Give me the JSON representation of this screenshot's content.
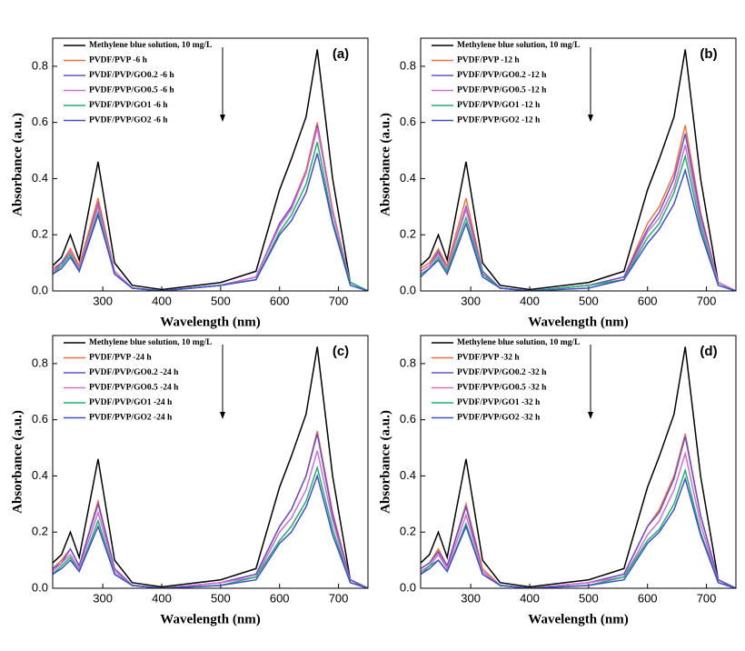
{
  "chart_data": [
    {
      "type": "line",
      "label": "(a)",
      "xlabel": "Wavelength (nm)",
      "ylabel": "Absorbance (a.u.)",
      "x": [
        215,
        230,
        245,
        260,
        292,
        320,
        350,
        400,
        500,
        560,
        600,
        620,
        645,
        664,
        690,
        720,
        750
      ],
      "xlim": [
        215,
        750
      ],
      "xticks": [
        300,
        400,
        500,
        600,
        700
      ],
      "ylim": [
        0,
        0.9
      ],
      "yticks": [
        {
          "value": 0,
          "label": "0.0"
        },
        0.2,
        0.4,
        0.6,
        0.8
      ],
      "series": [
        {
          "name": "Methylene blue solution, 10 mg/L",
          "color": "#000000",
          "values": [
            0.09,
            0.12,
            0.2,
            0.11,
            0.46,
            0.1,
            0.02,
            0.005,
            0.03,
            0.07,
            0.36,
            0.47,
            0.62,
            0.86,
            0.4,
            0.03,
            0.0
          ]
        },
        {
          "name": "PVDF/PVP -6 h",
          "color": "#f07040",
          "values": [
            0.08,
            0.1,
            0.15,
            0.09,
            0.33,
            0.07,
            0.01,
            0.0,
            0.02,
            0.05,
            0.24,
            0.3,
            0.43,
            0.6,
            0.29,
            0.03,
            0.0
          ]
        },
        {
          "name": "PVDF/PVP/GO0.2 -6 h",
          "color": "#6a50c8",
          "values": [
            0.07,
            0.1,
            0.14,
            0.08,
            0.31,
            0.07,
            0.01,
            0.0,
            0.02,
            0.05,
            0.24,
            0.3,
            0.42,
            0.59,
            0.28,
            0.03,
            0.0
          ]
        },
        {
          "name": "PVDF/PVP/GO0.5 -6 h",
          "color": "#d070d0",
          "values": [
            0.07,
            0.09,
            0.14,
            0.08,
            0.3,
            0.07,
            0.01,
            0.0,
            0.02,
            0.05,
            0.23,
            0.29,
            0.42,
            0.58,
            0.28,
            0.03,
            0.0
          ]
        },
        {
          "name": "PVDF/PVP/GO1 -6 h",
          "color": "#20b070",
          "values": [
            0.06,
            0.09,
            0.13,
            0.07,
            0.28,
            0.06,
            0.01,
            0.0,
            0.02,
            0.04,
            0.21,
            0.27,
            0.38,
            0.53,
            0.25,
            0.03,
            0.0
          ]
        },
        {
          "name": "PVDF/PVP/GO2 -6 h",
          "color": "#4050c0",
          "values": [
            0.06,
            0.08,
            0.12,
            0.07,
            0.27,
            0.06,
            0.01,
            0.0,
            0.02,
            0.04,
            0.2,
            0.25,
            0.35,
            0.49,
            0.24,
            0.02,
            0.0
          ]
        }
      ]
    },
    {
      "type": "line",
      "label": "(b)",
      "xlabel": "Wavelength (nm)",
      "ylabel": "Absorbance (a.u.)",
      "x": [
        215,
        230,
        245,
        260,
        292,
        320,
        350,
        400,
        500,
        560,
        600,
        620,
        645,
        664,
        690,
        720,
        750
      ],
      "xlim": [
        215,
        750
      ],
      "xticks": [
        300,
        400,
        500,
        600,
        700
      ],
      "ylim": [
        0,
        0.9
      ],
      "yticks": [
        {
          "value": 0,
          "label": "0.0"
        },
        0.2,
        0.4,
        0.6,
        0.8
      ],
      "series": [
        {
          "name": "Methylene blue solution, 10 mg/L",
          "color": "#000000",
          "values": [
            0.09,
            0.12,
            0.2,
            0.11,
            0.46,
            0.1,
            0.02,
            0.005,
            0.03,
            0.07,
            0.36,
            0.47,
            0.62,
            0.86,
            0.4,
            0.03,
            0.0
          ]
        },
        {
          "name": "PVDF/PVP -12 h",
          "color": "#f07040",
          "values": [
            0.08,
            0.1,
            0.15,
            0.09,
            0.33,
            0.07,
            0.01,
            0.0,
            0.02,
            0.05,
            0.24,
            0.3,
            0.42,
            0.59,
            0.28,
            0.03,
            0.0
          ]
        },
        {
          "name": "PVDF/PVP/GO0.2 -12 h",
          "color": "#6a50c8",
          "values": [
            0.07,
            0.09,
            0.14,
            0.08,
            0.3,
            0.07,
            0.01,
            0.0,
            0.02,
            0.05,
            0.22,
            0.28,
            0.4,
            0.56,
            0.27,
            0.03,
            0.0
          ]
        },
        {
          "name": "PVDF/PVP/GO0.5 -12 h",
          "color": "#d070d0",
          "values": [
            0.07,
            0.09,
            0.13,
            0.08,
            0.29,
            0.06,
            0.01,
            0.0,
            0.02,
            0.04,
            0.21,
            0.26,
            0.37,
            0.52,
            0.25,
            0.03,
            0.0
          ]
        },
        {
          "name": "PVDF/PVP/GO1 -12 h",
          "color": "#20b070",
          "values": [
            0.06,
            0.08,
            0.12,
            0.07,
            0.26,
            0.06,
            0.01,
            0.0,
            0.02,
            0.04,
            0.19,
            0.24,
            0.35,
            0.48,
            0.23,
            0.02,
            0.0
          ]
        },
        {
          "name": "PVDF/PVP/GO2 -12 h",
          "color": "#4050c0",
          "values": [
            0.05,
            0.08,
            0.11,
            0.06,
            0.24,
            0.05,
            0.01,
            0.0,
            0.01,
            0.04,
            0.17,
            0.22,
            0.31,
            0.43,
            0.21,
            0.02,
            0.0
          ]
        }
      ]
    },
    {
      "type": "line",
      "label": "(c)",
      "xlabel": "Wavelength (nm)",
      "ylabel": "Absorbance (a.u.)",
      "x": [
        215,
        230,
        245,
        260,
        292,
        320,
        350,
        400,
        500,
        560,
        600,
        620,
        645,
        664,
        690,
        720,
        750
      ],
      "xlim": [
        215,
        750
      ],
      "xticks": [
        300,
        400,
        500,
        600,
        700
      ],
      "ylim": [
        0,
        0.9
      ],
      "yticks": [
        {
          "value": 0,
          "label": "0.0"
        },
        0.2,
        0.4,
        0.6,
        0.8
      ],
      "series": [
        {
          "name": "Methylene blue solution, 10 mg/L",
          "color": "#000000",
          "values": [
            0.09,
            0.12,
            0.2,
            0.11,
            0.46,
            0.1,
            0.02,
            0.005,
            0.03,
            0.07,
            0.36,
            0.47,
            0.62,
            0.86,
            0.4,
            0.03,
            0.0
          ]
        },
        {
          "name": "PVDF/PVP -24 h",
          "color": "#f07040",
          "values": [
            0.07,
            0.1,
            0.14,
            0.08,
            0.31,
            0.07,
            0.01,
            0.0,
            0.02,
            0.05,
            0.22,
            0.28,
            0.4,
            0.56,
            0.27,
            0.03,
            0.0
          ]
        },
        {
          "name": "PVDF/PVP/GO0.2 -24 h",
          "color": "#6a50c8",
          "values": [
            0.07,
            0.09,
            0.14,
            0.08,
            0.3,
            0.07,
            0.01,
            0.0,
            0.02,
            0.05,
            0.22,
            0.28,
            0.4,
            0.55,
            0.26,
            0.03,
            0.0
          ]
        },
        {
          "name": "PVDF/PVP/GO0.5 -24 h",
          "color": "#d070d0",
          "values": [
            0.06,
            0.09,
            0.12,
            0.07,
            0.27,
            0.06,
            0.01,
            0.0,
            0.02,
            0.04,
            0.2,
            0.25,
            0.35,
            0.49,
            0.24,
            0.02,
            0.0
          ]
        },
        {
          "name": "PVDF/PVP/GO1 -24 h",
          "color": "#20b070",
          "values": [
            0.05,
            0.08,
            0.11,
            0.06,
            0.24,
            0.05,
            0.01,
            0.0,
            0.01,
            0.04,
            0.17,
            0.22,
            0.31,
            0.43,
            0.21,
            0.02,
            0.0
          ]
        },
        {
          "name": "PVDF/PVP/GO2 -24 h",
          "color": "#4050c0",
          "values": [
            0.05,
            0.07,
            0.1,
            0.06,
            0.22,
            0.05,
            0.01,
            0.0,
            0.01,
            0.03,
            0.16,
            0.2,
            0.29,
            0.4,
            0.19,
            0.02,
            0.0
          ]
        }
      ]
    },
    {
      "type": "line",
      "label": "(d)",
      "xlabel": "Wavelength (nm)",
      "ylabel": "Absorbance (a.u.)",
      "x": [
        215,
        230,
        245,
        260,
        292,
        320,
        350,
        400,
        500,
        560,
        600,
        620,
        645,
        664,
        690,
        720,
        750
      ],
      "xlim": [
        215,
        750
      ],
      "xticks": [
        300,
        400,
        500,
        600,
        700
      ],
      "ylim": [
        0,
        0.9
      ],
      "yticks": [
        {
          "value": 0,
          "label": "0.0"
        },
        0.2,
        0.4,
        0.6,
        0.8
      ],
      "series": [
        {
          "name": "Methylene blue solution, 10 mg/L",
          "color": "#000000",
          "values": [
            0.09,
            0.12,
            0.2,
            0.11,
            0.46,
            0.1,
            0.02,
            0.005,
            0.03,
            0.07,
            0.36,
            0.47,
            0.62,
            0.86,
            0.4,
            0.03,
            0.0
          ]
        },
        {
          "name": "PVDF/PVP -32 h",
          "color": "#f07040",
          "values": [
            0.07,
            0.09,
            0.14,
            0.08,
            0.3,
            0.07,
            0.01,
            0.0,
            0.02,
            0.05,
            0.22,
            0.28,
            0.4,
            0.55,
            0.26,
            0.03,
            0.0
          ]
        },
        {
          "name": "PVDF/PVP/GO0.2 -32 h",
          "color": "#6a50c8",
          "values": [
            0.07,
            0.09,
            0.13,
            0.08,
            0.29,
            0.06,
            0.01,
            0.0,
            0.02,
            0.05,
            0.22,
            0.27,
            0.39,
            0.54,
            0.26,
            0.03,
            0.0
          ]
        },
        {
          "name": "PVDF/PVP/GO0.5 -32 h",
          "color": "#d070d0",
          "values": [
            0.06,
            0.08,
            0.12,
            0.07,
            0.26,
            0.06,
            0.01,
            0.0,
            0.02,
            0.04,
            0.19,
            0.24,
            0.35,
            0.48,
            0.23,
            0.02,
            0.0
          ]
        },
        {
          "name": "PVDF/PVP/GO1 -32 h",
          "color": "#20b070",
          "values": [
            0.05,
            0.08,
            0.1,
            0.06,
            0.23,
            0.05,
            0.01,
            0.0,
            0.01,
            0.04,
            0.17,
            0.21,
            0.3,
            0.42,
            0.2,
            0.02,
            0.0
          ]
        },
        {
          "name": "PVDF/PVP/GO2 -32 h",
          "color": "#4050c0",
          "values": [
            0.05,
            0.07,
            0.1,
            0.06,
            0.22,
            0.05,
            0.01,
            0.0,
            0.01,
            0.03,
            0.16,
            0.2,
            0.28,
            0.39,
            0.19,
            0.02,
            0.0
          ]
        }
      ]
    }
  ]
}
